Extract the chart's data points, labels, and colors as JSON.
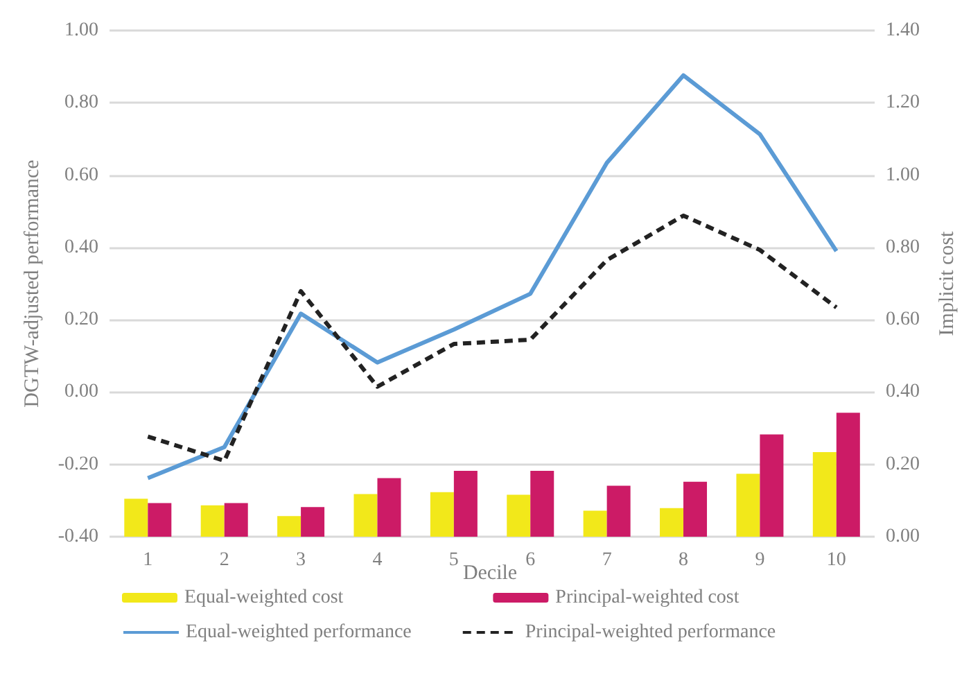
{
  "chart_data": {
    "type": "bar",
    "categories": [
      "1",
      "2",
      "3",
      "4",
      "5",
      "6",
      "7",
      "8",
      "9",
      "10"
    ],
    "series": [
      {
        "name": "Equal-weighted cost",
        "axis": "y2",
        "color": "#f2e81a",
        "values": [
          0.105,
          0.087,
          0.057,
          0.118,
          0.123,
          0.116,
          0.072,
          0.079,
          0.174,
          0.234
        ]
      },
      {
        "name": "Principal-weighted cost",
        "axis": "y2",
        "color": "#cc1b66",
        "values": [
          0.093,
          0.093,
          0.082,
          0.162,
          0.182,
          0.182,
          0.141,
          0.152,
          0.283,
          0.343
        ]
      },
      {
        "name": "Equal-weighted performance",
        "type": "line",
        "color": "#5b9bd5",
        "line_style": "solid",
        "values": [
          -0.238,
          -0.152,
          0.217,
          0.082,
          0.173,
          0.272,
          0.634,
          0.876,
          0.713,
          0.39
        ]
      },
      {
        "name": "Principal-weighted performance",
        "type": "line",
        "color": "#222222",
        "line_style": "dashed",
        "values": [
          -0.123,
          -0.19,
          0.279,
          0.015,
          0.133,
          0.145,
          0.365,
          0.488,
          0.393,
          0.234
        ]
      }
    ],
    "xlabel": "Decile",
    "ylabel": "DGTW-adjusted performance",
    "y2label": "Implicit cost",
    "ylim": [
      -0.4,
      1.0
    ],
    "yticks": [
      {
        "value": -0.4,
        "label": "-0.40"
      },
      {
        "value": -0.2,
        "label": "-0.20"
      },
      {
        "value": 0,
        "label": "0.00"
      },
      {
        "value": 0.2,
        "label": "0.20"
      },
      {
        "value": 0.4,
        "label": "0.40"
      },
      {
        "value": 0.6,
        "label": "0.60"
      },
      {
        "value": 0.8,
        "label": "0.80"
      },
      {
        "value": 1.0,
        "label": "1.00"
      }
    ],
    "y2lim": [
      0,
      1.4
    ],
    "y2ticks": [
      {
        "value": 0,
        "label": "0.00"
      },
      {
        "value": 0.2,
        "label": "0.20"
      },
      {
        "value": 0.4,
        "label": "0.40"
      },
      {
        "value": 0.6,
        "label": "0.60"
      },
      {
        "value": 0.8,
        "label": "0.80"
      },
      {
        "value": 1.0,
        "label": "1.00"
      },
      {
        "value": 1.2,
        "label": "1.20"
      },
      {
        "value": 1.4,
        "label": "1.40"
      }
    ],
    "grid": "y",
    "legend": "bottom",
    "marker": "none"
  }
}
